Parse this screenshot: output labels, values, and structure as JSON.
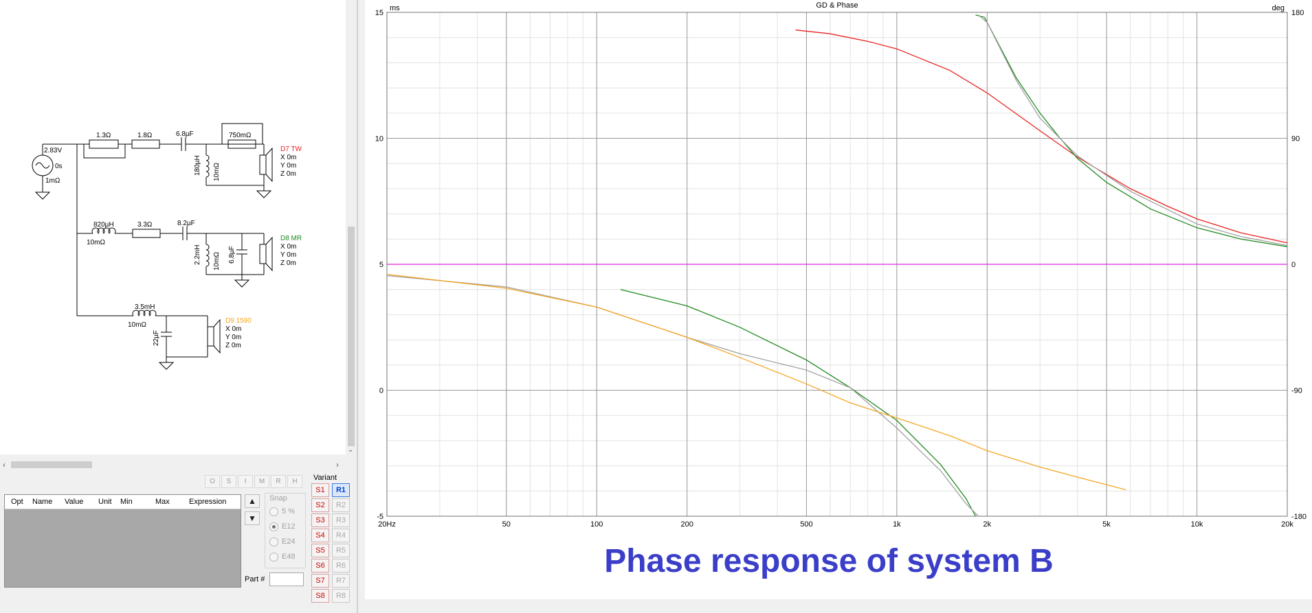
{
  "schematic": {
    "source": {
      "voltage": "2.83V",
      "delay": "0s",
      "resistance": "1mΩ"
    },
    "tw_branch": {
      "r1": "1.3Ω",
      "r2": "1.8Ω",
      "cap": "6.8µF",
      "r_par": "750mΩ",
      "ind": "180µH",
      "ind_r": "10mΩ"
    },
    "tw_driver": {
      "name": "D7 TW",
      "x": "X 0m",
      "y": "Y 0m",
      "z": "Z 0m"
    },
    "mr_branch": {
      "ind": "820µH",
      "ind_r": "10mΩ",
      "r1": "3.3Ω",
      "cap": "8.2µF",
      "ind2": "2.2mH",
      "ind2_r": "10mΩ",
      "cap2": "6.8µF"
    },
    "mr_driver": {
      "name": "D8 MR",
      "x": "X 0m",
      "y": "Y 0m",
      "z": "Z 0m"
    },
    "bass_branch": {
      "ind": "3.5mH",
      "ind_r": "10mΩ",
      "cap": "22µF"
    },
    "bass_driver": {
      "name": "D9 1590",
      "x": "X 0m",
      "y": "Y 0m",
      "z": "Z 0m"
    }
  },
  "tool_buttons": [
    "O",
    "S",
    "I",
    "M",
    "R",
    "H"
  ],
  "param_table": {
    "columns": [
      "Opt",
      "Name",
      "Value",
      "Unit",
      "Min",
      "Max",
      "Expression"
    ]
  },
  "snap": {
    "label": "Snap",
    "options": [
      "5 %",
      "E12",
      "E24",
      "E48"
    ],
    "selected": "E12"
  },
  "part_label": "Part #",
  "variant": {
    "label": "Variant",
    "s_buttons": [
      "S1",
      "S2",
      "S3",
      "S4",
      "S5",
      "S6",
      "S7",
      "S8"
    ],
    "r_buttons": [
      "R1",
      "R2",
      "R3",
      "R4",
      "R5",
      "R6",
      "R7",
      "R8"
    ],
    "active": "R1"
  },
  "colors": {
    "tw": "#e8201e",
    "mr": "#1f8a1f",
    "bass": "#f5a623",
    "sum": "#a0a0a0",
    "ref": "#e020e0",
    "caption": "#3a3ec8"
  },
  "caption": "Phase response of system B",
  "chart_data": {
    "type": "line",
    "title": "GD & Phase",
    "ylabel_left": "ms",
    "ylabel_right": "deg",
    "x_scale": "log",
    "xlim": [
      20,
      20000
    ],
    "ylim_left": [
      -5,
      15
    ],
    "ylim_right": [
      -180,
      180
    ],
    "x_ticks": [
      {
        "v": 20,
        "label": "20Hz"
      },
      {
        "v": 50,
        "label": "50"
      },
      {
        "v": 100,
        "label": "100"
      },
      {
        "v": 200,
        "label": "200"
      },
      {
        "v": 500,
        "label": "500"
      },
      {
        "v": 1000,
        "label": "1k"
      },
      {
        "v": 2000,
        "label": "2k"
      },
      {
        "v": 5000,
        "label": "5k"
      },
      {
        "v": 10000,
        "label": "10k"
      },
      {
        "v": 20000,
        "label": "20k"
      }
    ],
    "y_ticks_left": [
      {
        "v": 15,
        "label": "15"
      },
      {
        "v": 10,
        "label": "10"
      },
      {
        "v": 5,
        "label": "5"
      },
      {
        "v": 0,
        "label": "0"
      },
      {
        "v": -5,
        "label": "-5"
      }
    ],
    "y_ticks_right": [
      {
        "v": 180,
        "label": "180"
      },
      {
        "v": 90,
        "label": "90"
      },
      {
        "v": 0,
        "label": "0"
      },
      {
        "v": -90,
        "label": "-90"
      },
      {
        "v": -180,
        "label": "-180"
      }
    ],
    "grid": true,
    "series": [
      {
        "key": "ref",
        "points": [
          [
            20,
            5
          ],
          [
            20000,
            5
          ]
        ]
      },
      {
        "key": "tw",
        "points": [
          [
            460,
            14.3
          ],
          [
            600,
            14.15
          ],
          [
            800,
            13.85
          ],
          [
            1000,
            13.55
          ],
          [
            1500,
            12.7
          ],
          [
            2000,
            11.8
          ],
          [
            3000,
            10.3
          ],
          [
            4000,
            9.25
          ],
          [
            6000,
            8.0
          ],
          [
            8000,
            7.3
          ],
          [
            10000,
            6.8
          ],
          [
            14000,
            6.25
          ],
          [
            20000,
            5.85
          ]
        ]
      },
      {
        "key": "mr",
        "points": [
          [
            120,
            4.0
          ],
          [
            200,
            3.35
          ],
          [
            300,
            2.5
          ],
          [
            500,
            1.2
          ],
          [
            700,
            0.1
          ],
          [
            1000,
            -1.2
          ],
          [
            1400,
            -2.95
          ],
          [
            1700,
            -4.3
          ],
          [
            1830,
            -5.0
          ]
        ]
      },
      {
        "key": "mr",
        "points": [
          [
            1830,
            14.9
          ],
          [
            1960,
            14.8
          ],
          [
            2500,
            12.4
          ],
          [
            3000,
            11.0
          ],
          [
            3500,
            10.0
          ],
          [
            4000,
            9.2
          ],
          [
            5000,
            8.25
          ],
          [
            7000,
            7.2
          ],
          [
            10000,
            6.45
          ],
          [
            14000,
            6.0
          ],
          [
            20000,
            5.7
          ]
        ]
      },
      {
        "key": "sum",
        "points": [
          [
            20,
            4.55
          ],
          [
            50,
            4.1
          ],
          [
            100,
            3.3
          ],
          [
            200,
            2.1
          ],
          [
            300,
            1.45
          ],
          [
            500,
            0.8
          ],
          [
            700,
            0.1
          ],
          [
            1000,
            -1.5
          ],
          [
            1400,
            -3.2
          ],
          [
            1700,
            -4.5
          ],
          [
            1870,
            -5.0
          ]
        ]
      },
      {
        "key": "sum",
        "points": [
          [
            1870,
            14.9
          ],
          [
            2000,
            14.6
          ],
          [
            2500,
            12.3
          ],
          [
            3000,
            10.8
          ],
          [
            4000,
            9.3
          ],
          [
            6000,
            7.9
          ],
          [
            10000,
            6.6
          ],
          [
            14000,
            6.1
          ],
          [
            20000,
            5.75
          ]
        ]
      },
      {
        "key": "bass",
        "points": [
          [
            20,
            4.6
          ],
          [
            50,
            4.05
          ],
          [
            100,
            3.3
          ],
          [
            200,
            2.1
          ],
          [
            300,
            1.3
          ],
          [
            500,
            0.25
          ],
          [
            700,
            -0.5
          ],
          [
            1000,
            -1.1
          ],
          [
            1500,
            -1.8
          ],
          [
            2000,
            -2.4
          ],
          [
            3000,
            -3.05
          ],
          [
            4000,
            -3.45
          ],
          [
            5800,
            -3.95
          ]
        ]
      }
    ]
  }
}
